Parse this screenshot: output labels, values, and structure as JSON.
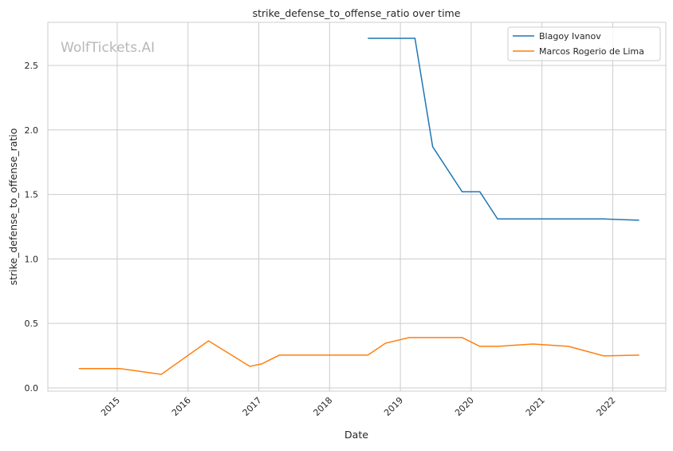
{
  "chart_data": {
    "type": "line",
    "title": "strike_defense_to_offense_ratio over time",
    "xlabel": "Date",
    "ylabel": "strike_defense_to_offense_ratio",
    "watermark": "WolfTickets.AI",
    "xlim": [
      "2014-01",
      "2022-10"
    ],
    "ylim": [
      -0.025,
      2.834
    ],
    "x_ticks": [
      "2015",
      "2016",
      "2017",
      "2018",
      "2019",
      "2020",
      "2021",
      "2022"
    ],
    "y_ticks": [
      "0.0",
      "0.5",
      "1.0",
      "1.5",
      "2.0",
      "2.5"
    ],
    "grid": true,
    "legend_position": "top-right",
    "series": [
      {
        "name": "Blagoy Ivanov",
        "color": "#1f77b4",
        "x": [
          "2018-07",
          "2019-03",
          "2019-06",
          "2019-11",
          "2020-02",
          "2020-05",
          "2021-11",
          "2022-05"
        ],
        "y": [
          2.71,
          2.71,
          1.87,
          1.52,
          1.52,
          1.31,
          1.31,
          1.3
        ]
      },
      {
        "name": "Marcos Rogerio de Lima",
        "color": "#ff7f0e",
        "x": [
          "2014-06",
          "2015-01",
          "2015-08",
          "2016-04",
          "2016-11",
          "2017-01",
          "2017-04",
          "2018-07",
          "2018-10",
          "2019-02",
          "2019-11",
          "2020-02",
          "2020-05",
          "2020-11",
          "2021-05",
          "2021-11",
          "2022-05"
        ],
        "y": [
          0.15,
          0.15,
          0.105,
          0.365,
          0.167,
          0.186,
          0.254,
          0.254,
          0.347,
          0.39,
          0.39,
          0.322,
          0.322,
          0.34,
          0.322,
          0.248,
          0.254
        ]
      }
    ]
  }
}
